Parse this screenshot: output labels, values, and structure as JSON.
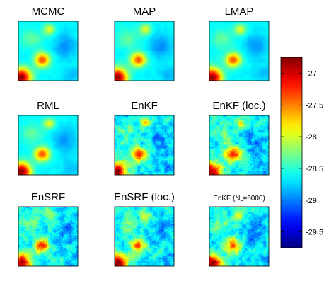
{
  "chart_data": {
    "type": "heatmap",
    "panels": [
      {
        "title": "MCMC",
        "smooth": true
      },
      {
        "title": "MAP",
        "smooth": true
      },
      {
        "title": "LMAP",
        "smooth": true
      },
      {
        "title": "RML",
        "smooth": true
      },
      {
        "title": "EnKF",
        "smooth": false
      },
      {
        "title": "EnKF (loc.)",
        "smooth": false
      },
      {
        "title": "EnSRF",
        "smooth": false
      },
      {
        "title": "EnSRF (loc.)",
        "smooth": false
      },
      {
        "title_main": "EnKF (N",
        "title_sub": "e",
        "title_tail": "=6000)",
        "smooth": false
      }
    ],
    "colorbar": {
      "colormap": "jet",
      "vmin": -29.75,
      "vmax": -26.75,
      "ticks": [
        "-27",
        "-27.5",
        "-28",
        "-28.5",
        "-29",
        "-29.5"
      ],
      "tick_values": [
        -27,
        -27.5,
        -28,
        -28.5,
        -29,
        -29.5
      ]
    }
  }
}
